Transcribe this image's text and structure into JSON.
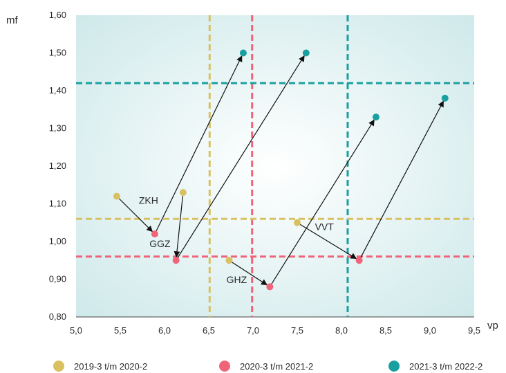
{
  "chart_data": {
    "type": "scatter",
    "xlabel": "vp",
    "ylabel": "mf",
    "xlim": [
      5.0,
      9.5
    ],
    "ylim": [
      0.8,
      1.6
    ],
    "x_ticks": [
      5.0,
      5.5,
      6.0,
      6.5,
      7.0,
      7.5,
      8.0,
      8.5,
      9.0,
      9.5
    ],
    "x_tick_labels": [
      "5,0",
      "5,5",
      "6,0",
      "6,5",
      "7,0",
      "7,5",
      "8,0",
      "8,5",
      "9,0",
      "9,5"
    ],
    "y_ticks": [
      0.8,
      0.9,
      1.0,
      1.1,
      1.2,
      1.3,
      1.4,
      1.5,
      1.6
    ],
    "y_tick_labels": [
      "0,80",
      "0,90",
      "1,00",
      "1,10",
      "1,20",
      "1,30",
      "1,40",
      "1,50",
      "1,60"
    ],
    "grid": false,
    "legend_position": "bottom",
    "series": [
      {
        "name": "2019-3 t/m 2020-2",
        "color": "#d9c061",
        "points": [
          [
            5.46,
            1.12
          ],
          [
            6.21,
            1.13
          ],
          [
            6.73,
            0.95
          ],
          [
            7.5,
            1.05
          ]
        ],
        "ref_x": 6.51,
        "ref_y": 1.06
      },
      {
        "name": "2020-3 t/m 2021-2",
        "color": "#f0647a",
        "points": [
          [
            5.89,
            1.02
          ],
          [
            6.13,
            0.95
          ],
          [
            7.19,
            0.88
          ],
          [
            8.2,
            0.95
          ]
        ],
        "ref_x": 6.99,
        "ref_y": 0.96
      },
      {
        "name": "2021-3 t/m 2022-2",
        "color": "#1a9fa0",
        "points": [
          [
            6.89,
            1.5
          ],
          [
            7.6,
            1.5
          ],
          [
            8.39,
            1.33
          ],
          [
            9.17,
            1.38
          ]
        ],
        "ref_x": 8.07,
        "ref_y": 1.42
      }
    ],
    "arrows": [
      {
        "from": [
          5.46,
          1.12
        ],
        "to": [
          5.89,
          1.02
        ]
      },
      {
        "from": [
          5.89,
          1.02
        ],
        "to": [
          6.89,
          1.5
        ]
      },
      {
        "from": [
          6.21,
          1.13
        ],
        "to": [
          6.13,
          0.95
        ]
      },
      {
        "from": [
          6.13,
          0.95
        ],
        "to": [
          7.6,
          1.5
        ]
      },
      {
        "from": [
          6.73,
          0.95
        ],
        "to": [
          7.19,
          0.88
        ]
      },
      {
        "from": [
          7.19,
          0.88
        ],
        "to": [
          8.39,
          1.33
        ]
      },
      {
        "from": [
          7.5,
          1.05
        ],
        "to": [
          8.2,
          0.95
        ]
      },
      {
        "from": [
          8.2,
          0.95
        ],
        "to": [
          9.17,
          1.38
        ]
      }
    ],
    "annotations": [
      {
        "text": "ZKH",
        "x": 5.71,
        "y": 1.1
      },
      {
        "text": "GGZ",
        "x": 5.83,
        "y": 0.985
      },
      {
        "text": "GHZ",
        "x": 6.7,
        "y": 0.89
      },
      {
        "text": "VVT",
        "x": 7.7,
        "y": 1.03
      }
    ]
  }
}
